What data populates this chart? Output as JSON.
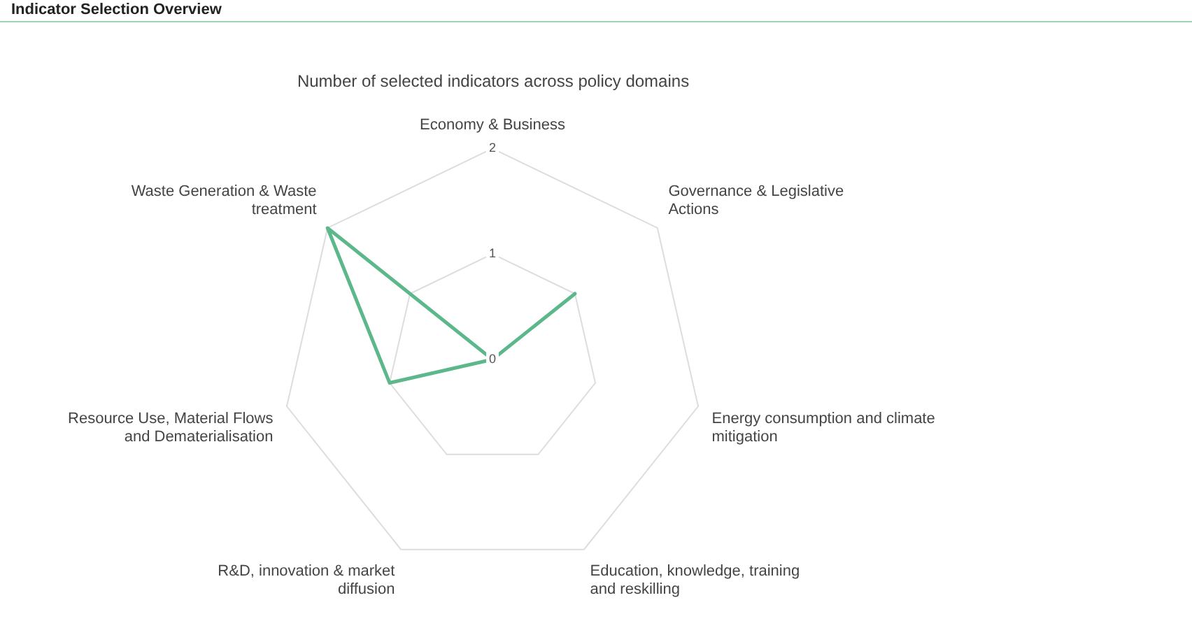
{
  "chart_data": {
    "type": "radar",
    "title": "Number of selected indicators across policy domains",
    "annotations": [
      "Indicator Selection Overview"
    ],
    "categories": [
      "Economy & Business",
      "Governance & Legislative Actions",
      "Energy consumption and climate mitigation",
      "Education, knowledge, training and reskilling",
      "R&D, innovation & market diffusion",
      "Resource Use, Material Flows and Dematerialisation",
      "Waste Generation & Waste treatment"
    ],
    "series": [
      {
        "color": "#5cb88a",
        "values": [
          0,
          1,
          0,
          0,
          0,
          1,
          2
        ]
      }
    ],
    "ylim": [
      0,
      2
    ],
    "yticks": [
      0,
      1,
      2
    ],
    "grid": true,
    "legend": false,
    "marker": "none",
    "line_style": "solid"
  }
}
